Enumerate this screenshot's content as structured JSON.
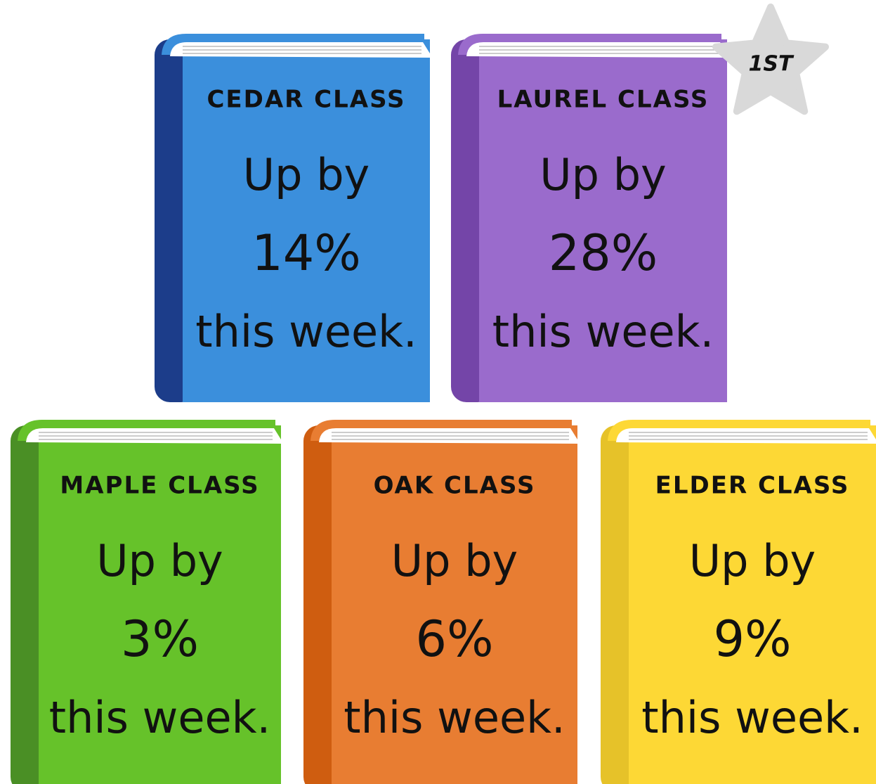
{
  "books": [
    {
      "title": "CEDAR CLASS",
      "line1": "Up by",
      "change": "14%",
      "line2": "this week."
    },
    {
      "title": "LAUREL CLASS",
      "line1": "Up by",
      "change": "28%",
      "line2": "this week.",
      "badge": "1ST"
    },
    {
      "title": "MAPLE CLASS",
      "line1": "Up by",
      "change": "3%",
      "line2": "this week."
    },
    {
      "title": "OAK CLASS",
      "line1": "Up by",
      "change": "6%",
      "line2": "this week."
    },
    {
      "title": "ELDER CLASS",
      "line1": "Up by",
      "change": "9%",
      "line2": "this week."
    }
  ]
}
